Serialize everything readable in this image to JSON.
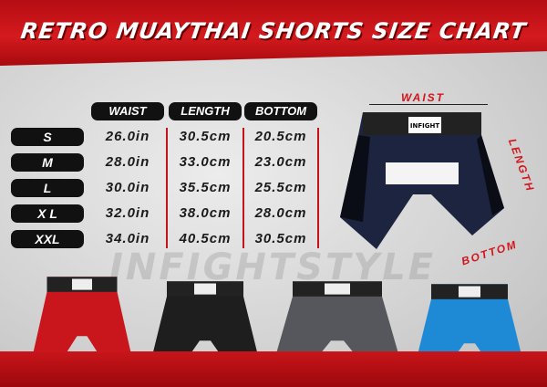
{
  "title": "RETRO MUAYTHAI SHORTS SIZE CHART",
  "table": {
    "columns": [
      "WAIST",
      "LENGTH",
      "BOTTOM"
    ],
    "rows": [
      {
        "size": "S",
        "waist": "26.0in",
        "length": "30.5cm",
        "bottom": "20.5cm"
      },
      {
        "size": "M",
        "waist": "28.0in",
        "length": "33.0cm",
        "bottom": "23.0cm"
      },
      {
        "size": "L",
        "waist": "30.0in",
        "length": "35.5cm",
        "bottom": "25.5cm"
      },
      {
        "size": "X L",
        "waist": "32.0in",
        "length": "38.0cm",
        "bottom": "28.0cm"
      },
      {
        "size": "XXL",
        "waist": "34.0in",
        "length": "40.5cm",
        "bottom": "30.5cm"
      }
    ]
  },
  "diagram": {
    "waist": "WAIST",
    "length": "LENGTH",
    "bottom": "BOTTOM",
    "brand": "INFIGHT STYLE"
  },
  "watermark": "INFIGHTSTYLE",
  "colors": {
    "accent": "#d41a1f",
    "pill": "#111111",
    "navy": "#1c2440"
  },
  "products": [
    {
      "name": "red-shorts",
      "color": "#c8161c"
    },
    {
      "name": "black-shorts",
      "color": "#1e1e1e"
    },
    {
      "name": "gray-shorts",
      "color": "#55575d"
    },
    {
      "name": "blue-shorts",
      "color": "#1e8ad6"
    }
  ]
}
